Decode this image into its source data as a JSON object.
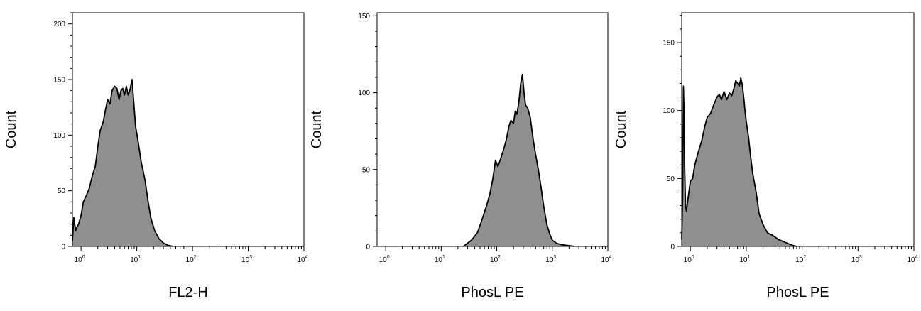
{
  "chart_data": [
    {
      "type": "area",
      "title": "",
      "xlabel": "FL2-H",
      "ylabel": "Count",
      "xscale": "log",
      "xlim": [
        0.7,
        10000
      ],
      "ylim": [
        0,
        210
      ],
      "x_ticks": [
        "10^0",
        "10^1",
        "10^2",
        "10^3",
        "10^4"
      ],
      "y_ticks": [
        0,
        50,
        100,
        150,
        200
      ],
      "fill_color": "#8f8f8f",
      "line_color": "#000000",
      "series": [
        {
          "x": [
            0.7,
            0.74,
            0.77,
            0.8,
            0.84,
            0.9,
            1.0,
            1.1,
            1.25,
            1.4,
            1.6,
            1.8,
            2.0,
            2.2,
            2.5,
            2.8,
            3.0,
            3.3,
            3.6,
            4.0,
            4.4,
            4.8,
            5.2,
            5.6,
            6.0,
            6.5,
            7.0,
            7.5,
            8.2,
            8.8,
            9.5,
            10.5,
            12,
            14,
            16,
            18,
            21,
            25,
            30,
            36,
            45
          ],
          "y": [
            5,
            26,
            20,
            14,
            17,
            20,
            28,
            40,
            46,
            52,
            64,
            72,
            90,
            104,
            112,
            125,
            132,
            128,
            140,
            144,
            142,
            132,
            140,
            142,
            136,
            144,
            136,
            140,
            150,
            130,
            108,
            95,
            76,
            60,
            40,
            25,
            14,
            7,
            3,
            1,
            0
          ]
        }
      ]
    },
    {
      "type": "area",
      "title": "",
      "xlabel": "PhosL PE",
      "ylabel": "Count",
      "xscale": "log",
      "xlim": [
        0.7,
        10000
      ],
      "ylim": [
        0,
        152
      ],
      "x_ticks": [
        "10^0",
        "10^1",
        "10^2",
        "10^3",
        "10^4"
      ],
      "y_ticks": [
        0,
        50,
        100,
        150
      ],
      "fill_color": "#8f8f8f",
      "line_color": "#000000",
      "series": [
        {
          "x": [
            25,
            35,
            45,
            55,
            65,
            75,
            85,
            95,
            105,
            115,
            125,
            135,
            150,
            165,
            180,
            200,
            215,
            230,
            250,
            270,
            290,
            310,
            330,
            360,
            400,
            450,
            500,
            560,
            630,
            700,
            800,
            900,
            1000,
            1200,
            1500,
            2000,
            2500
          ],
          "y": [
            0,
            4,
            9,
            18,
            26,
            34,
            44,
            56,
            52,
            56,
            60,
            64,
            70,
            78,
            82,
            80,
            88,
            86,
            94,
            106,
            112,
            100,
            92,
            90,
            84,
            70,
            60,
            50,
            38,
            26,
            14,
            8,
            4,
            2,
            1,
            0.5,
            0
          ]
        }
      ]
    },
    {
      "type": "area",
      "title": "",
      "xlabel": "PhosL PE",
      "ylabel": "Count",
      "xscale": "log",
      "xlim": [
        0.7,
        10000
      ],
      "ylim": [
        0,
        172
      ],
      "x_ticks": [
        "10^0",
        "10^1",
        "10^2",
        "10^3",
        "10^4"
      ],
      "y_ticks": [
        0,
        50,
        100,
        150
      ],
      "fill_color": "#8f8f8f",
      "line_color": "#000000",
      "series": [
        {
          "x": [
            0.7,
            0.73,
            0.75,
            0.77,
            0.79,
            0.82,
            0.85,
            0.9,
            1.0,
            1.1,
            1.2,
            1.4,
            1.6,
            1.8,
            2.0,
            2.3,
            2.6,
            3.0,
            3.3,
            3.6,
            4.0,
            4.5,
            5.0,
            5.5,
            6.0,
            6.5,
            7.0,
            7.5,
            8.0,
            8.5,
            9.0,
            9.5,
            10,
            11,
            12,
            13,
            15,
            17,
            20,
            24,
            30,
            38,
            50,
            65,
            80
          ],
          "y": [
            5,
            40,
            118,
            100,
            60,
            30,
            26,
            34,
            48,
            50,
            60,
            70,
            78,
            88,
            95,
            98,
            104,
            110,
            112,
            108,
            114,
            108,
            113,
            111,
            116,
            122,
            120,
            118,
            124,
            119,
            110,
            100,
            92,
            80,
            66,
            54,
            40,
            24,
            16,
            10,
            8,
            5,
            3,
            1,
            0
          ]
        }
      ]
    }
  ]
}
